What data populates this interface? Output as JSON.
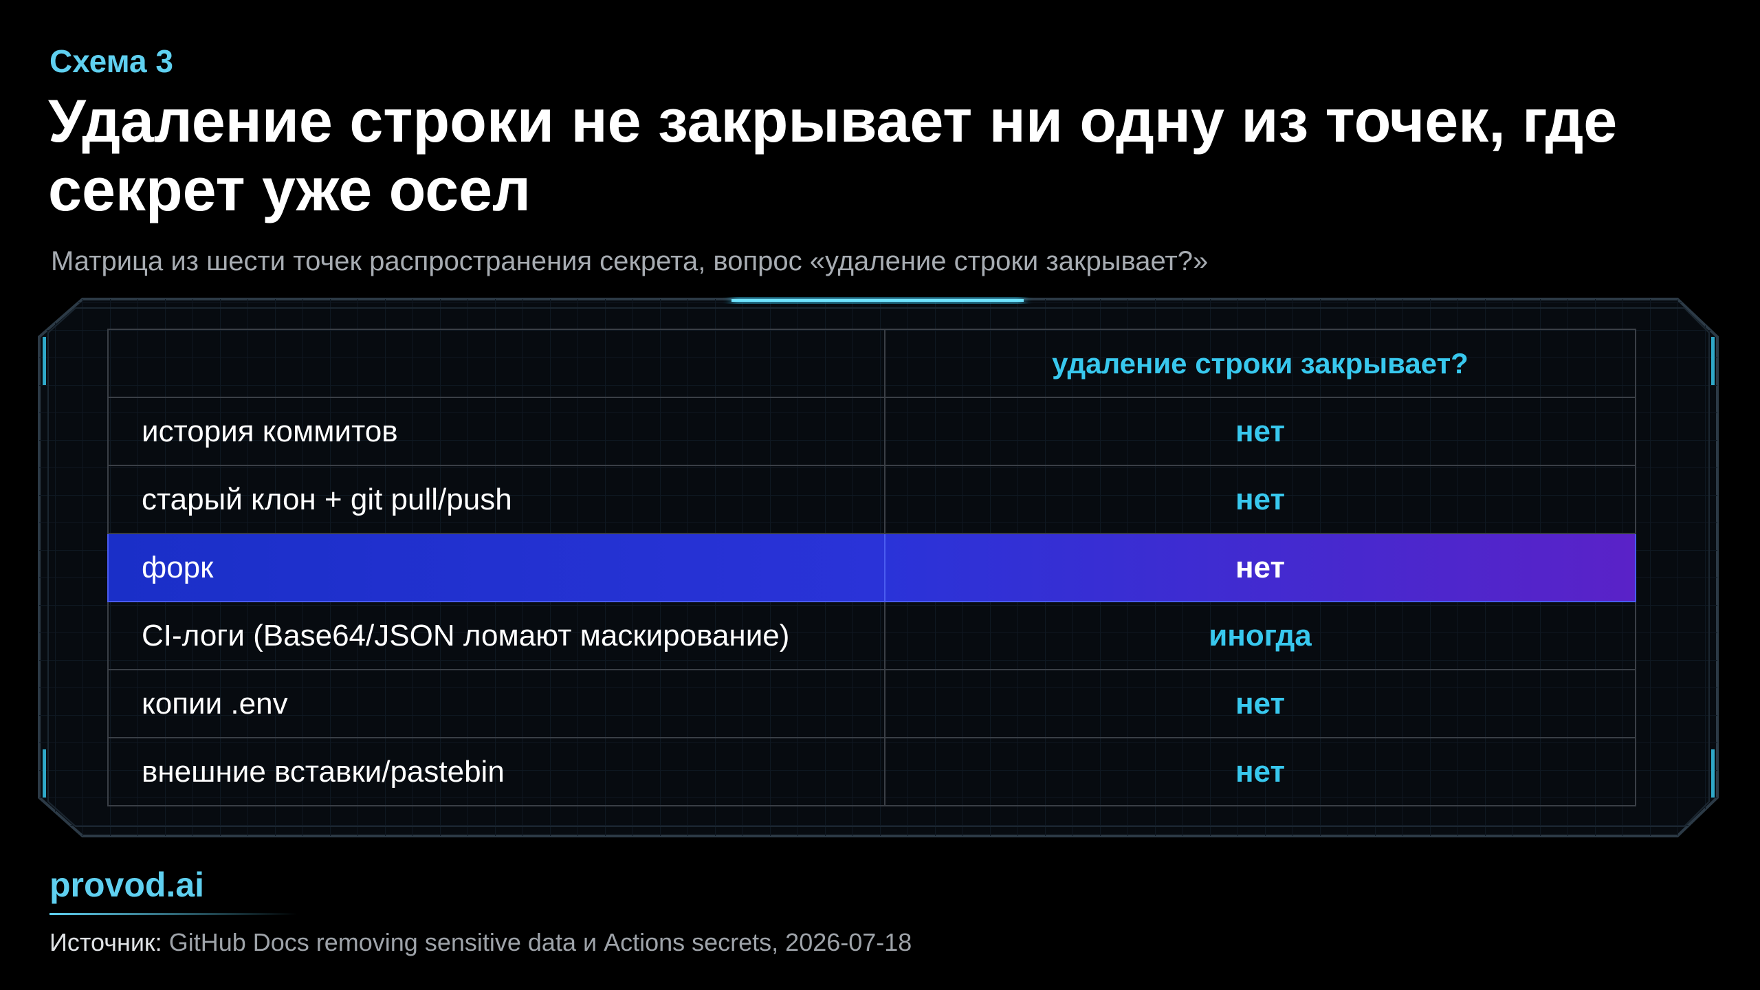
{
  "header": {
    "kicker": "Схема 3",
    "title": "Удаление строки не закрывает ни одну из точек, где секрет уже осел",
    "subtitle": "Матрица из шести точек распространения секрета, вопрос «удаление строки закрывает?»"
  },
  "table": {
    "column_header": "удаление строки закрывает?",
    "rows": [
      [
        "история коммитов",
        "нет"
      ],
      [
        "старый клон + git pull/push",
        "нет"
      ],
      [
        "форк",
        "нет"
      ],
      [
        "CI-логи (Base64/JSON ломают маскирование)",
        "иногда"
      ],
      [
        "копии .env",
        "нет"
      ],
      [
        "внешние вставки/pastebin",
        "нет"
      ]
    ]
  },
  "footer": {
    "brand": "provod.ai",
    "source_label": "Источник:",
    "source_text": "GitHub Docs removing sensitive data и Actions secrets, 2026-07-18"
  }
}
